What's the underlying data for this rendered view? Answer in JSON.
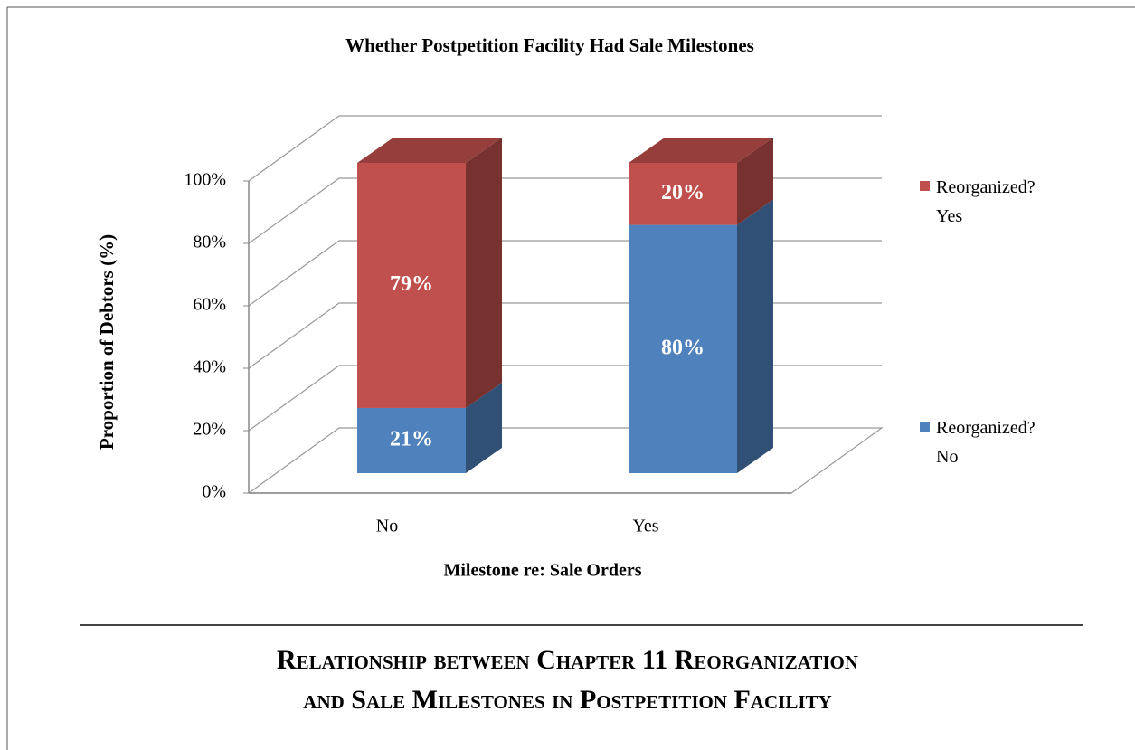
{
  "chart_data": {
    "type": "bar3d_stacked",
    "title": "Whether Postpetition Facility Had Sale Milestones",
    "x_label": "Milestone re: Sale Orders",
    "y_label": "Proportion of Debtors (%)",
    "categories": [
      "No",
      "Yes"
    ],
    "series": [
      {
        "name": "Reorganized? No",
        "color": "#4f81bd",
        "values": [
          21,
          80
        ],
        "value_labels": [
          "21%",
          "80%"
        ]
      },
      {
        "name": "Reorganized? Yes",
        "color": "#c0504d",
        "values": [
          79,
          20
        ],
        "value_labels": [
          "79%",
          "20%"
        ]
      }
    ],
    "ylim": [
      0,
      100
    ],
    "yticks": [
      {
        "value": 0,
        "label": "0%"
      },
      {
        "value": 20,
        "label": "20%"
      },
      {
        "value": 40,
        "label": "40%"
      },
      {
        "value": 60,
        "label": "60%"
      },
      {
        "value": 80,
        "label": "80%"
      },
      {
        "value": 100,
        "label": "100%"
      }
    ],
    "grid": true,
    "legend": "right"
  },
  "caption": "Relationship between Chapter 11 Reorganization and Sale Milestones in Postpetition Facility"
}
